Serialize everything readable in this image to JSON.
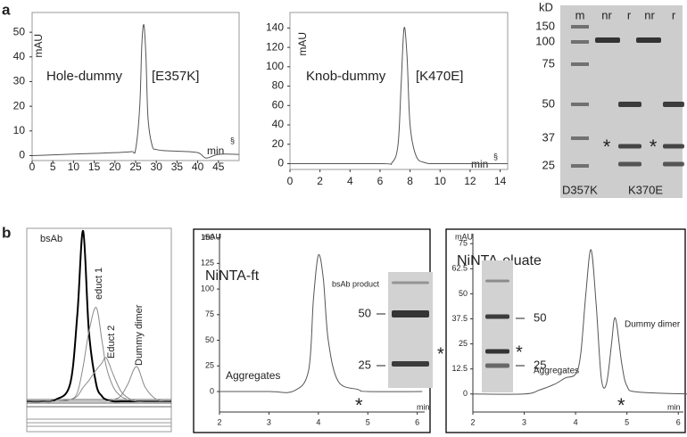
{
  "panels": [
    "a",
    "b"
  ],
  "chart_data": [
    {
      "type": "line",
      "title": "Hole-dummy",
      "subtitle": "[E357K]",
      "y_label": "mAU",
      "x_label": "min",
      "annotations": [
        "§"
      ],
      "x": [
        0,
        5,
        10,
        15,
        20,
        24,
        25,
        26,
        26.5,
        27,
        27.5,
        28,
        29,
        30,
        32,
        35,
        40,
        42,
        45,
        50
      ],
      "series": [
        {
          "color": "#555555",
          "values": [
            0,
            0.3,
            0.6,
            0.9,
            1.2,
            1.6,
            2.5,
            20,
            45,
            53,
            40,
            15,
            4,
            2.5,
            2,
            1.8,
            1.2,
            -1,
            0.5,
            0.5
          ]
        }
      ],
      "xlim": [
        0,
        50
      ],
      "ylim": [
        -2,
        58
      ],
      "xticks": [
        0,
        5,
        10,
        15,
        20,
        25,
        30,
        35,
        40,
        45
      ],
      "yticks": [
        0,
        10,
        20,
        30,
        40,
        50
      ]
    },
    {
      "type": "line",
      "title": "Knob-dummy",
      "subtitle": "[K470E]",
      "y_label": "mAU",
      "x_label": "min",
      "annotations": [
        "§"
      ],
      "x": [
        0,
        6,
        6.8,
        7.2,
        7.4,
        7.6,
        7.8,
        8.0,
        8.4,
        9,
        10,
        14.5
      ],
      "series": [
        {
          "color": "#555555",
          "values": [
            0,
            0,
            1,
            20,
            80,
            140,
            110,
            40,
            8,
            1,
            0,
            0
          ]
        }
      ],
      "xlim": [
        0,
        14.5
      ],
      "ylim": [
        -6,
        156
      ],
      "xticks": [
        0,
        2,
        4,
        6,
        8,
        10,
        12,
        14
      ],
      "yticks": [
        0,
        20,
        40,
        60,
        80,
        100,
        120,
        140
      ]
    },
    {
      "type": "line",
      "x": [
        0,
        1,
        2,
        3,
        3.5,
        3.9,
        4.3,
        4.8,
        5.2,
        5.5,
        6,
        6.5,
        7,
        7.6,
        8.2,
        9,
        10
      ],
      "series": [
        {
          "name": "bsAb",
          "color": "#000000",
          "values": [
            0,
            0,
            1,
            10,
            50,
            98,
            40,
            10,
            3,
            1,
            0,
            0,
            0,
            0,
            0,
            0,
            0
          ]
        },
        {
          "name": "educt 1",
          "color": "#8a8a8a",
          "values": [
            0,
            0,
            0,
            1,
            5,
            20,
            40,
            54,
            35,
            20,
            8,
            3,
            1,
            0,
            0,
            0,
            0
          ]
        },
        {
          "name": "Educt 2",
          "color": "#8a8a8a",
          "values": [
            0,
            0,
            0,
            1,
            3,
            8,
            12,
            18,
            22,
            25,
            15,
            6,
            2,
            0,
            0,
            0,
            0
          ]
        },
        {
          "name": "Dummy dimer",
          "color": "#8a8a8a",
          "values": [
            0,
            0,
            0,
            0,
            0,
            0,
            0,
            0,
            0,
            0,
            1,
            3,
            10,
            20,
            8,
            1,
            0
          ]
        }
      ],
      "xlim": [
        0,
        10
      ],
      "ylim": [
        0,
        100
      ]
    },
    {
      "type": "line",
      "title": "NiNTA-ft",
      "y_label": "mAU",
      "x_label": "min",
      "annotations": [
        "Aggregates",
        "*"
      ],
      "x": [
        2,
        3,
        3.5,
        3.8,
        3.9,
        4.0,
        4.1,
        4.2,
        4.4,
        4.8,
        5,
        6.1
      ],
      "series": [
        {
          "color": "#555555",
          "values": [
            0,
            0,
            0.5,
            20,
            90,
            133,
            110,
            50,
            10,
            2,
            0,
            0
          ]
        }
      ],
      "xlim": [
        2,
        6.15
      ],
      "ylim": [
        -20,
        154
      ],
      "xticks": [
        2,
        3,
        4,
        5,
        6
      ],
      "yticks": [
        0,
        25,
        50,
        75,
        100,
        125,
        150
      ],
      "inset": {
        "title": "bsAb product",
        "markers": [
          50,
          25
        ],
        "mark": "*"
      }
    },
    {
      "type": "line",
      "title": "NiNTA-eluate",
      "y_label": "mAU",
      "x_label": "min",
      "annotations": [
        "Aggregates",
        "Dummy dimer",
        "*"
      ],
      "x": [
        2,
        3,
        3.3,
        3.6,
        3.8,
        4.0,
        4.1,
        4.2,
        4.3,
        4.4,
        4.5,
        4.6,
        4.7,
        4.75,
        4.8,
        4.9,
        5.0,
        5.2,
        6.2
      ],
      "series": [
        {
          "color": "#555555",
          "values": [
            0,
            0,
            2,
            5,
            8,
            10,
            20,
            50,
            72,
            45,
            8,
            5,
            25,
            37,
            35,
            15,
            4,
            1,
            0
          ]
        }
      ],
      "xlim": [
        2,
        6.1
      ],
      "ylim": [
        -9,
        80
      ],
      "xticks": [
        2,
        3,
        4,
        5,
        6
      ],
      "yticks": [
        0,
        12.5,
        25,
        37.5,
        50,
        62.5,
        75
      ],
      "inset": {
        "markers": [
          50,
          25
        ],
        "mark": "*"
      }
    }
  ],
  "gel": {
    "unit": "kD",
    "lanes": [
      "m",
      "nr",
      "r",
      "nr",
      "r"
    ],
    "markers": [
      150,
      100,
      75,
      50,
      37,
      25
    ],
    "samples": [
      "D357K",
      "K370E"
    ],
    "mark": "*"
  }
}
